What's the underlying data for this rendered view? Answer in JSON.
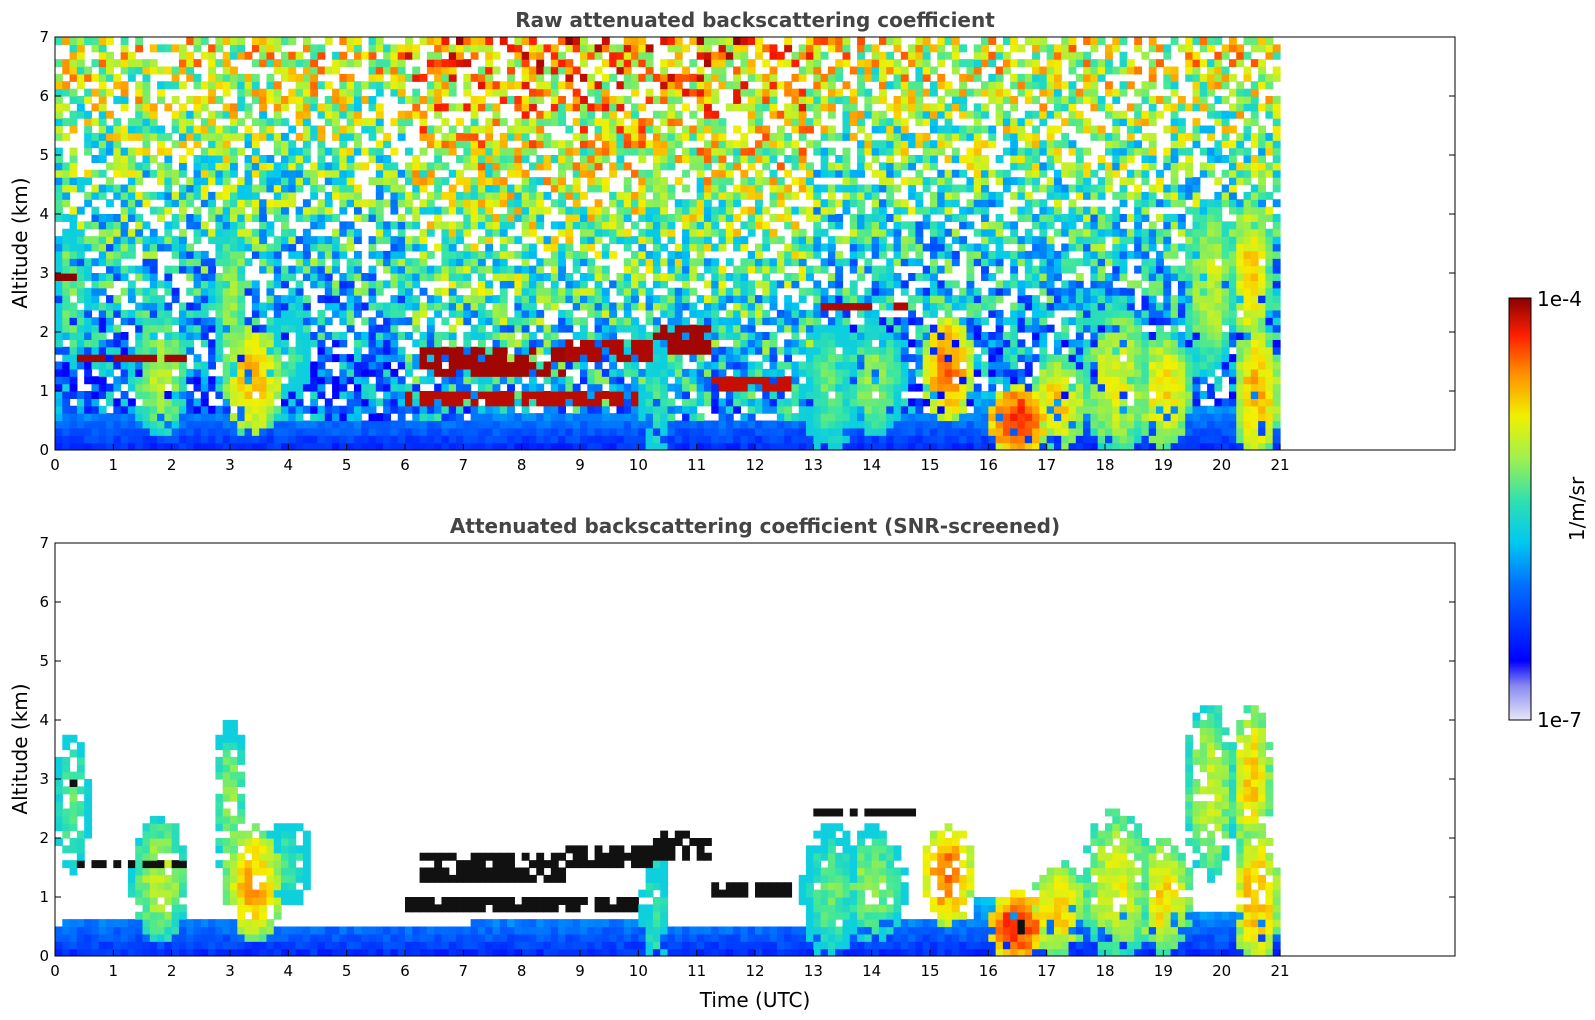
{
  "chart_data": [
    {
      "type": "heatmap",
      "title": "Raw attenuated backscattering coefficient",
      "xlabel": "",
      "ylabel": "Altitude (km)",
      "xlim": [
        0,
        24
      ],
      "ylim": [
        0,
        7
      ],
      "xticks": [
        "0",
        "1",
        "2",
        "3",
        "4",
        "5",
        "6",
        "7",
        "8",
        "9",
        "10",
        "11",
        "12",
        "13",
        "14",
        "15",
        "16",
        "17",
        "18",
        "19",
        "20",
        "21"
      ],
      "yticks": [
        "0",
        "1",
        "2",
        "3",
        "4",
        "5",
        "6",
        "7"
      ],
      "data_extent_x": [
        0,
        21
      ],
      "screened": false
    },
    {
      "type": "heatmap",
      "title": "Attenuated backscattering coefficient (SNR-screened)",
      "xlabel": "Time (UTC)",
      "ylabel": "Altitude (km)",
      "xlim": [
        0,
        24
      ],
      "ylim": [
        0,
        7
      ],
      "xticks": [
        "0",
        "1",
        "2",
        "3",
        "4",
        "5",
        "6",
        "7",
        "8",
        "9",
        "10",
        "11",
        "12",
        "13",
        "14",
        "15",
        "16",
        "17",
        "18",
        "19",
        "20",
        "21"
      ],
      "yticks": [
        "0",
        "1",
        "2",
        "3",
        "4",
        "5",
        "6",
        "7"
      ],
      "data_extent_x": [
        0,
        21
      ],
      "screened": true
    }
  ],
  "colorbar": {
    "label": "1/m/sr",
    "max_label": "1e-4",
    "min_label": "1e-7",
    "scale": "log",
    "colormap": "jet"
  }
}
